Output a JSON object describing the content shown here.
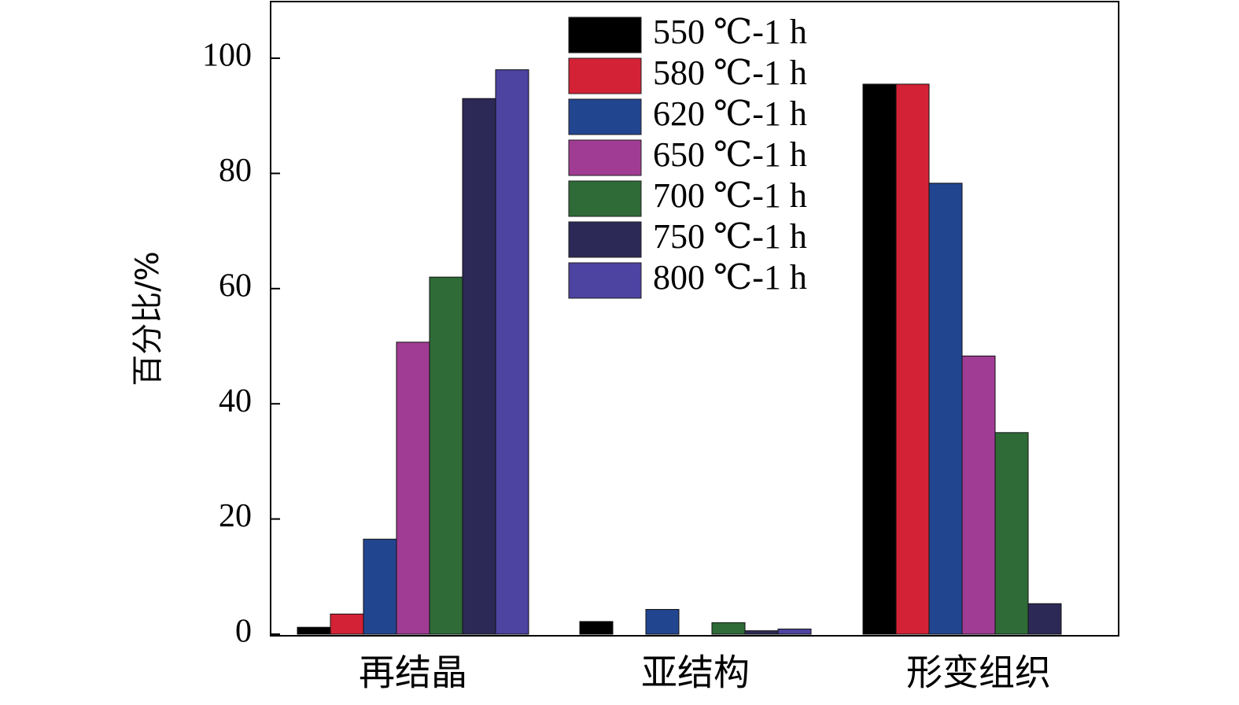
{
  "chart_data": {
    "type": "bar",
    "ylabel": "百分比/%",
    "xlabel": "",
    "ylim": [
      0,
      110
    ],
    "yticks": [
      0,
      20,
      40,
      60,
      80,
      100
    ],
    "categories": [
      "再结晶",
      "亚结构",
      "形变组织"
    ],
    "legend_position": "top-center",
    "series": [
      {
        "name": "550 ℃-1 h",
        "color": "#000000",
        "values": [
          1.2,
          2.2,
          95.5
        ]
      },
      {
        "name": "580 ℃-1 h",
        "color": "#d32236",
        "values": [
          3.5,
          0.0,
          95.5
        ]
      },
      {
        "name": "620 ℃-1 h",
        "color": "#224590",
        "values": [
          16.5,
          4.3,
          78.3
        ]
      },
      {
        "name": "650 ℃-1 h",
        "color": "#a03c93",
        "values": [
          50.7,
          0.0,
          48.3
        ]
      },
      {
        "name": "700 ℃-1 h",
        "color": "#2e6b37",
        "values": [
          62.0,
          2.0,
          35.0
        ]
      },
      {
        "name": "750 ℃-1 h",
        "color": "#2c2957",
        "values": [
          93.0,
          0.6,
          5.3
        ]
      },
      {
        "name": "800 ℃-1 h",
        "color": "#4d43a0",
        "values": [
          98.0,
          0.9,
          0.0
        ]
      }
    ]
  }
}
